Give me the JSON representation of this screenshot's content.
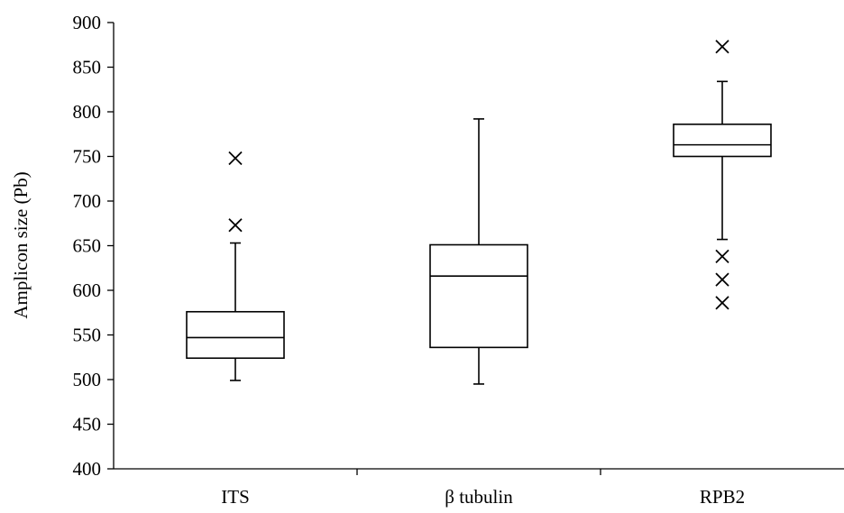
{
  "chart_data": {
    "type": "box",
    "title": "",
    "xlabel": "",
    "ylabel": "Amplicon size (Pb)",
    "ylim": [
      400,
      900
    ],
    "yticks": [
      400,
      450,
      500,
      550,
      600,
      650,
      700,
      750,
      800,
      850,
      900
    ],
    "grid": false,
    "categories": [
      "ITS",
      "β tubulin",
      "RPB2"
    ],
    "boxes": [
      {
        "category": "ITS",
        "whisker_low": 499,
        "q1": 524,
        "median": 547,
        "q3": 576,
        "whisker_high": 653,
        "outliers": [
          673,
          748
        ]
      },
      {
        "category": "β tubulin",
        "whisker_low": 495,
        "q1": 536,
        "median": 616,
        "q3": 651,
        "whisker_high": 792,
        "outliers": []
      },
      {
        "category": "RPB2",
        "whisker_low": 657,
        "q1": 750,
        "median": 763,
        "q3": 786,
        "whisker_high": 834,
        "outliers": [
          586,
          612,
          638,
          873
        ]
      }
    ]
  }
}
